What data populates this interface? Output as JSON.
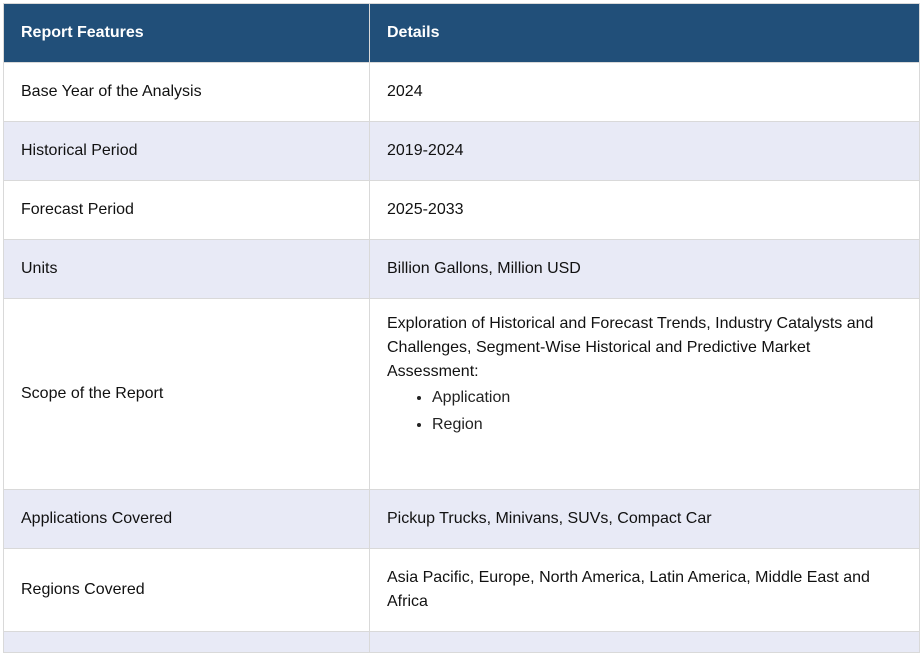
{
  "header": {
    "col1": "Report Features",
    "col2": "Details"
  },
  "rows": [
    {
      "feature": "Base Year of the Analysis",
      "details": "2024"
    },
    {
      "feature": "Historical Period",
      "details": "2019-2024"
    },
    {
      "feature": "Forecast Period",
      "details": "2025-2033"
    },
    {
      "feature": "Units",
      "details": "Billion Gallons, Million USD"
    },
    {
      "feature": "Scope of the Report",
      "details": "Exploration of Historical and Forecast Trends, Industry Catalysts and Challenges, Segment-Wise Historical and Predictive Market Assessment:",
      "bullets": [
        "Application",
        "Region"
      ]
    },
    {
      "feature": "Applications Covered",
      "details": "Pickup Trucks, Minivans, SUVs, Compact Car"
    },
    {
      "feature": "Regions Covered",
      "details": "Asia Pacific, Europe, North America, Latin America, Middle East and Africa"
    }
  ],
  "colors": {
    "header_bg": "#214f79",
    "alt_row_bg": "#e8eaf6"
  }
}
